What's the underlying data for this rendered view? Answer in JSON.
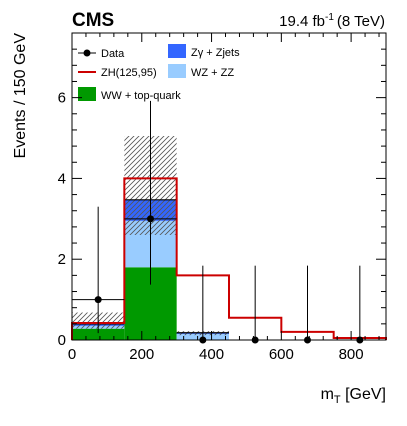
{
  "chart_data": {
    "type": "bar",
    "experiment": "CMS",
    "lumi_main": "19.4 fb",
    "lumi_exp": "-1",
    "lumi_energy": "(8 TeV)",
    "xlabel_main": "m",
    "xlabel_sub": "T",
    "xlabel_unit": " [GeV]",
    "ylabel": "Events / 150 GeV",
    "xlim": [
      0,
      900
    ],
    "ylim": [
      0,
      7.6
    ],
    "x_ticks": [
      0,
      200,
      400,
      600,
      800
    ],
    "y_ticks": [
      0,
      2,
      4,
      6
    ],
    "bin_edges": [
      0,
      150,
      300,
      450,
      600,
      750,
      900
    ],
    "stack": [
      {
        "name": "WW + top-quark",
        "color": "#009900",
        "values": [
          0.28,
          1.8,
          0.0,
          0.0,
          0.0,
          0.0
        ]
      },
      {
        "name": "WZ + ZZ",
        "color": "#99ccff",
        "values": [
          0.07,
          1.15,
          0.15,
          0.0,
          0.0,
          0.0
        ]
      },
      {
        "name": "Zγ + Zjets",
        "color": "#3366ff",
        "values": [
          0.05,
          0.52,
          0.03,
          0.0,
          0.0,
          0.0
        ]
      }
    ],
    "total_background": [
      0.4,
      3.47,
      0.18,
      0.0,
      0.0,
      0.0
    ],
    "uncertainty_band": {
      "low": [
        0.28,
        2.6,
        0.12,
        0,
        0,
        0
      ],
      "high": [
        0.68,
        5.05,
        0.22,
        0,
        0,
        0
      ]
    },
    "signal": {
      "name": "ZH(125,95)",
      "color": "#cc0000",
      "values": [
        0.42,
        4.0,
        1.6,
        0.55,
        0.2,
        0.05
      ]
    },
    "data": {
      "name": "Data",
      "x": [
        75,
        225,
        375,
        525,
        675,
        825
      ],
      "y": [
        1,
        3,
        0,
        0,
        0,
        0
      ],
      "err_low": [
        0.83,
        1.63,
        0,
        0,
        0,
        0
      ],
      "err_high": [
        2.3,
        2.92,
        1.84,
        1.84,
        1.84,
        1.84
      ]
    },
    "legend": [
      {
        "label": "Data",
        "kind": "marker"
      },
      {
        "label": "Zγ + Zjets",
        "kind": "fill",
        "color": "#3366ff"
      },
      {
        "label": "ZH(125,95)",
        "kind": "line",
        "color": "#cc0000"
      },
      {
        "label": "WZ + ZZ",
        "kind": "fill",
        "color": "#99ccff"
      },
      {
        "label": "WW + top-quark",
        "kind": "fill",
        "color": "#009900"
      }
    ]
  }
}
